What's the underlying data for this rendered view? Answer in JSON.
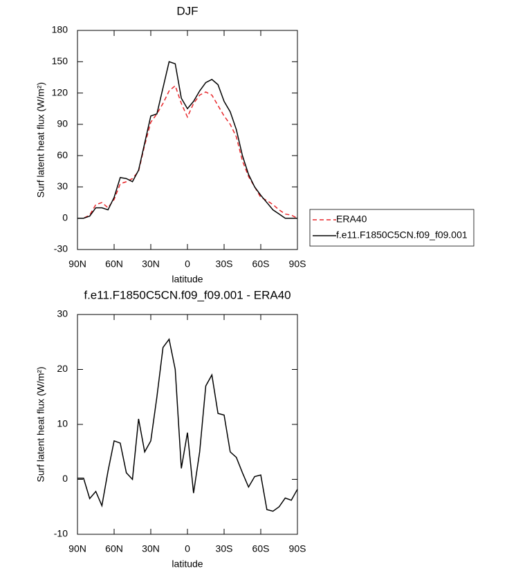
{
  "chart_data": [
    {
      "type": "line",
      "title": "DJF",
      "xlabel": "latitude",
      "ylabel": "Surf latent heat flux (W/m²)",
      "x": [
        90,
        85,
        80,
        75,
        70,
        65,
        60,
        55,
        50,
        45,
        40,
        35,
        30,
        25,
        20,
        15,
        10,
        5,
        0,
        -5,
        -10,
        -15,
        -20,
        -25,
        -30,
        -35,
        -40,
        -45,
        -50,
        -55,
        -60,
        -65,
        -70,
        -75,
        -80,
        -85,
        -90
      ],
      "series": [
        {
          "name": "ERA40",
          "color": "#e8262a",
          "dashed": true,
          "values": [
            0,
            0,
            3,
            13,
            15,
            10,
            18,
            33,
            35,
            38,
            45,
            70,
            92,
            100,
            110,
            122,
            127,
            110,
            97,
            110,
            118,
            121,
            118,
            108,
            98,
            90,
            78,
            55,
            40,
            30,
            20,
            17,
            13,
            8,
            4,
            3,
            0
          ]
        },
        {
          "name": "f.e11.F1850C5CN.f09_f09.001",
          "color": "#000000",
          "dashed": false,
          "values": [
            0,
            0,
            2,
            10,
            10,
            8,
            20,
            39,
            38,
            35,
            46,
            72,
            98,
            100,
            125,
            150,
            148,
            115,
            105,
            112,
            122,
            130,
            133,
            128,
            112,
            102,
            85,
            60,
            42,
            30,
            22,
            15,
            8,
            4,
            0,
            0,
            0
          ]
        }
      ],
      "xlim": [
        90,
        -90
      ],
      "xticks": [
        {
          "value": 90,
          "label": "90N"
        },
        {
          "value": 60,
          "label": "60N"
        },
        {
          "value": 30,
          "label": "30N"
        },
        0,
        {
          "value": -30,
          "label": "30S"
        },
        {
          "value": -60,
          "label": "60S"
        },
        {
          "value": -90,
          "label": "90S"
        }
      ],
      "ylim": [
        -30,
        180
      ],
      "yticks": [
        -30,
        0,
        30,
        60,
        90,
        120,
        150,
        180
      ],
      "legend": "right"
    },
    {
      "type": "line",
      "title": "f.e11.F1850C5CN.f09_f09.001 - ERA40",
      "xlabel": "latitude",
      "ylabel": "Surf latent heat flux (W/m²)",
      "x": [
        90,
        85,
        80,
        75,
        70,
        65,
        60,
        55,
        50,
        45,
        40,
        35,
        30,
        25,
        20,
        15,
        10,
        5,
        0,
        -5,
        -10,
        -15,
        -20,
        -25,
        -30,
        -35,
        -40,
        -45,
        -50,
        -55,
        -60,
        -65,
        -70,
        -75,
        -80,
        -85,
        -90
      ],
      "series": [
        {
          "color": "#000000",
          "dashed": false,
          "values": [
            0.2,
            0.2,
            -3.5,
            -2.2,
            -4.8,
            1.5,
            7,
            6.6,
            1.2,
            0,
            11,
            5,
            7,
            15,
            24,
            25.5,
            20,
            2,
            8.5,
            -2.5,
            5,
            17,
            19,
            12,
            11.7,
            5,
            4,
            1.2,
            -1.4,
            0.5,
            0.8,
            -5.5,
            -5.8,
            -5,
            -3.4,
            -3.8,
            -1.8
          ]
        }
      ],
      "xlim": [
        90,
        -90
      ],
      "xticks": [
        {
          "value": 90,
          "label": "90N"
        },
        {
          "value": 60,
          "label": "60N"
        },
        {
          "value": 30,
          "label": "30N"
        },
        0,
        {
          "value": -30,
          "label": "30S"
        },
        {
          "value": -60,
          "label": "60S"
        },
        {
          "value": -90,
          "label": "90S"
        }
      ],
      "ylim": [
        -10,
        30
      ],
      "yticks": [
        -10,
        0,
        10,
        20,
        30
      ]
    }
  ]
}
